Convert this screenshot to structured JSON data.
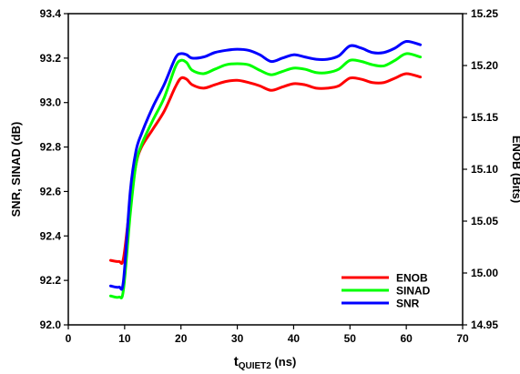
{
  "chart_data": {
    "type": "line",
    "x_axis": {
      "label_main": "t",
      "label_sub": "QUIET2",
      "label_unit": " (ns)",
      "range": [
        0,
        70
      ],
      "ticks": [
        0,
        10,
        20,
        30,
        40,
        50,
        60,
        70
      ]
    },
    "y_left": {
      "label": "SNR, SINAD (dB)",
      "range": [
        92.0,
        93.4
      ],
      "ticks": [
        "92.0",
        "92.2",
        "92.4",
        "92.6",
        "92.8",
        "93.0",
        "93.2",
        "93.4"
      ]
    },
    "y_right": {
      "label": "ENOB (Bits)",
      "range": [
        14.95,
        15.25
      ],
      "ticks": [
        "14.95",
        "15.00",
        "15.05",
        "15.10",
        "15.15",
        "15.20",
        "15.25"
      ]
    },
    "grid": false,
    "legend_position": "bottom-right",
    "series": [
      {
        "name": "ENOB",
        "color": "#ff0000",
        "axis": "left",
        "points": [
          [
            7.5,
            92.29
          ],
          [
            9,
            92.285
          ],
          [
            9.8,
            92.3
          ],
          [
            11,
            92.55
          ],
          [
            12,
            92.72
          ],
          [
            13,
            92.8
          ],
          [
            15,
            92.88
          ],
          [
            17,
            92.96
          ],
          [
            19,
            93.07
          ],
          [
            20,
            93.11
          ],
          [
            21,
            93.105
          ],
          [
            22,
            93.08
          ],
          [
            24,
            93.065
          ],
          [
            26,
            93.08
          ],
          [
            28,
            93.095
          ],
          [
            30,
            93.1
          ],
          [
            32,
            93.09
          ],
          [
            34,
            93.075
          ],
          [
            36,
            93.055
          ],
          [
            38,
            93.07
          ],
          [
            40,
            93.085
          ],
          [
            42,
            93.08
          ],
          [
            44,
            93.065
          ],
          [
            46,
            93.065
          ],
          [
            48,
            93.075
          ],
          [
            50,
            93.11
          ],
          [
            52,
            93.105
          ],
          [
            54,
            93.09
          ],
          [
            56,
            93.09
          ],
          [
            58,
            93.11
          ],
          [
            60,
            93.13
          ],
          [
            62.5,
            93.115
          ]
        ]
      },
      {
        "name": "SINAD",
        "color": "#00ff00",
        "axis": "left",
        "points": [
          [
            7.5,
            92.13
          ],
          [
            9,
            92.125
          ],
          [
            9.8,
            92.16
          ],
          [
            11,
            92.5
          ],
          [
            12,
            92.72
          ],
          [
            13,
            92.81
          ],
          [
            15,
            92.92
          ],
          [
            17,
            93.02
          ],
          [
            19,
            93.16
          ],
          [
            20,
            93.19
          ],
          [
            21,
            93.18
          ],
          [
            22,
            93.145
          ],
          [
            24,
            93.13
          ],
          [
            26,
            93.15
          ],
          [
            28,
            93.17
          ],
          [
            30,
            93.175
          ],
          [
            32,
            93.17
          ],
          [
            34,
            93.145
          ],
          [
            36,
            93.125
          ],
          [
            38,
            93.14
          ],
          [
            40,
            93.155
          ],
          [
            42,
            93.15
          ],
          [
            44,
            93.135
          ],
          [
            46,
            93.135
          ],
          [
            48,
            93.15
          ],
          [
            50,
            93.19
          ],
          [
            52,
            93.185
          ],
          [
            54,
            93.17
          ],
          [
            56,
            93.165
          ],
          [
            58,
            93.19
          ],
          [
            60,
            93.22
          ],
          [
            62.5,
            93.205
          ]
        ]
      },
      {
        "name": "SNR",
        "color": "#0000ff",
        "axis": "left",
        "points": [
          [
            7.5,
            92.175
          ],
          [
            9,
            92.17
          ],
          [
            9.8,
            92.2
          ],
          [
            11,
            92.6
          ],
          [
            12,
            92.78
          ],
          [
            13,
            92.86
          ],
          [
            15,
            92.98
          ],
          [
            17,
            93.08
          ],
          [
            19,
            93.2
          ],
          [
            20,
            93.22
          ],
          [
            21,
            93.215
          ],
          [
            22,
            93.2
          ],
          [
            24,
            93.205
          ],
          [
            26,
            93.225
          ],
          [
            28,
            93.235
          ],
          [
            30,
            93.24
          ],
          [
            32,
            93.235
          ],
          [
            34,
            93.215
          ],
          [
            36,
            93.185
          ],
          [
            38,
            93.2
          ],
          [
            40,
            93.215
          ],
          [
            42,
            93.205
          ],
          [
            44,
            93.195
          ],
          [
            46,
            93.195
          ],
          [
            48,
            93.21
          ],
          [
            50,
            93.255
          ],
          [
            52,
            93.245
          ],
          [
            54,
            93.225
          ],
          [
            56,
            93.225
          ],
          [
            58,
            93.245
          ],
          [
            60,
            93.275
          ],
          [
            62.5,
            93.26
          ]
        ]
      }
    ]
  }
}
